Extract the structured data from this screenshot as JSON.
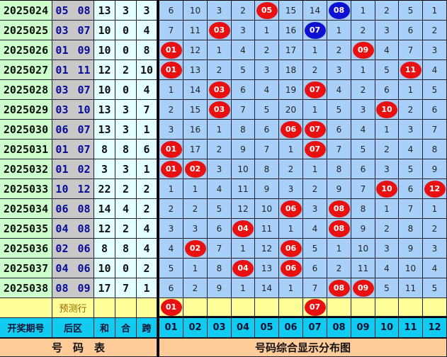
{
  "colors": {
    "hit": "#e81010",
    "blue_hit": "#1010d0",
    "grid": "#a8d0f8",
    "header": "#11ccf0",
    "footer": "#ffcc99",
    "predict": "#ffff99"
  },
  "rows": [
    {
      "period": "2025024",
      "back": "05 08",
      "sum": "13",
      "he": "3",
      "span": "3",
      "cells": [
        6,
        10,
        3,
        2,
        "05",
        15,
        14,
        "08",
        1,
        2,
        5,
        1
      ],
      "blue": [
        "08"
      ]
    },
    {
      "period": "2025025",
      "back": "03 07",
      "sum": "10",
      "he": "0",
      "span": "4",
      "cells": [
        7,
        11,
        "03",
        3,
        1,
        16,
        "07",
        1,
        2,
        3,
        6,
        2
      ],
      "blue": [
        "07"
      ]
    },
    {
      "period": "2025026",
      "back": "01 09",
      "sum": "10",
      "he": "0",
      "span": "8",
      "cells": [
        "01",
        12,
        1,
        4,
        2,
        17,
        1,
        2,
        "09",
        4,
        7,
        3
      ]
    },
    {
      "period": "2025027",
      "back": "01 11",
      "sum": "12",
      "he": "2",
      "span": "10",
      "cells": [
        "01",
        13,
        2,
        5,
        3,
        18,
        2,
        3,
        1,
        5,
        "11",
        4
      ]
    },
    {
      "period": "2025028",
      "back": "03 07",
      "sum": "10",
      "he": "0",
      "span": "4",
      "cells": [
        1,
        14,
        "03",
        6,
        4,
        19,
        "07",
        4,
        2,
        6,
        1,
        5
      ]
    },
    {
      "period": "2025029",
      "back": "03 10",
      "sum": "13",
      "he": "3",
      "span": "7",
      "cells": [
        2,
        15,
        "03",
        7,
        5,
        20,
        1,
        5,
        3,
        "10",
        2,
        6
      ]
    },
    {
      "period": "2025030",
      "back": "06 07",
      "sum": "13",
      "he": "3",
      "span": "1",
      "cells": [
        3,
        16,
        1,
        8,
        6,
        "06",
        "07",
        6,
        4,
        1,
        3,
        7
      ]
    },
    {
      "period": "2025031",
      "back": "01 07",
      "sum": "8",
      "he": "8",
      "span": "6",
      "cells": [
        "01",
        17,
        2,
        9,
        7,
        1,
        "07",
        7,
        5,
        2,
        4,
        8
      ]
    },
    {
      "period": "2025032",
      "back": "01 02",
      "sum": "3",
      "he": "3",
      "span": "1",
      "cells": [
        "01",
        "02",
        3,
        10,
        8,
        2,
        1,
        8,
        6,
        3,
        5,
        9
      ]
    },
    {
      "period": "2025033",
      "back": "10 12",
      "sum": "22",
      "he": "2",
      "span": "2",
      "cells": [
        1,
        1,
        4,
        11,
        9,
        3,
        2,
        9,
        7,
        "10",
        6,
        "12"
      ]
    },
    {
      "period": "2025034",
      "back": "06 08",
      "sum": "14",
      "he": "4",
      "span": "2",
      "cells": [
        2,
        2,
        5,
        12,
        10,
        "06",
        3,
        "08",
        8,
        1,
        7,
        1
      ]
    },
    {
      "period": "2025035",
      "back": "04 08",
      "sum": "12",
      "he": "2",
      "span": "4",
      "cells": [
        3,
        3,
        6,
        "04",
        11,
        1,
        4,
        "08",
        9,
        2,
        8,
        2
      ]
    },
    {
      "period": "2025036",
      "back": "02 06",
      "sum": "8",
      "he": "8",
      "span": "4",
      "cells": [
        4,
        "02",
        7,
        1,
        12,
        "06",
        5,
        1,
        10,
        3,
        9,
        3
      ]
    },
    {
      "period": "2025037",
      "back": "04 06",
      "sum": "10",
      "he": "0",
      "span": "2",
      "cells": [
        5,
        1,
        8,
        "04",
        13,
        "06",
        6,
        2,
        11,
        4,
        10,
        4
      ]
    },
    {
      "period": "2025038",
      "back": "08 09",
      "sum": "17",
      "he": "7",
      "span": "1",
      "cells": [
        6,
        2,
        9,
        1,
        14,
        1,
        7,
        "08",
        "09",
        5,
        11,
        5
      ]
    }
  ],
  "prediction": {
    "label": "预测行",
    "cells": [
      "01",
      "",
      "",
      "",
      "",
      "",
      "07",
      "",
      "",
      "",
      "",
      ""
    ]
  },
  "header": {
    "period": "开奖期号",
    "back": "后区",
    "sum": "和",
    "he": "合",
    "span": "跨",
    "numbers": [
      "01",
      "02",
      "03",
      "04",
      "05",
      "06",
      "07",
      "08",
      "09",
      "10",
      "11",
      "12"
    ]
  },
  "footer": {
    "left": "号　码　表",
    "right": "号码综合显示分布图"
  }
}
